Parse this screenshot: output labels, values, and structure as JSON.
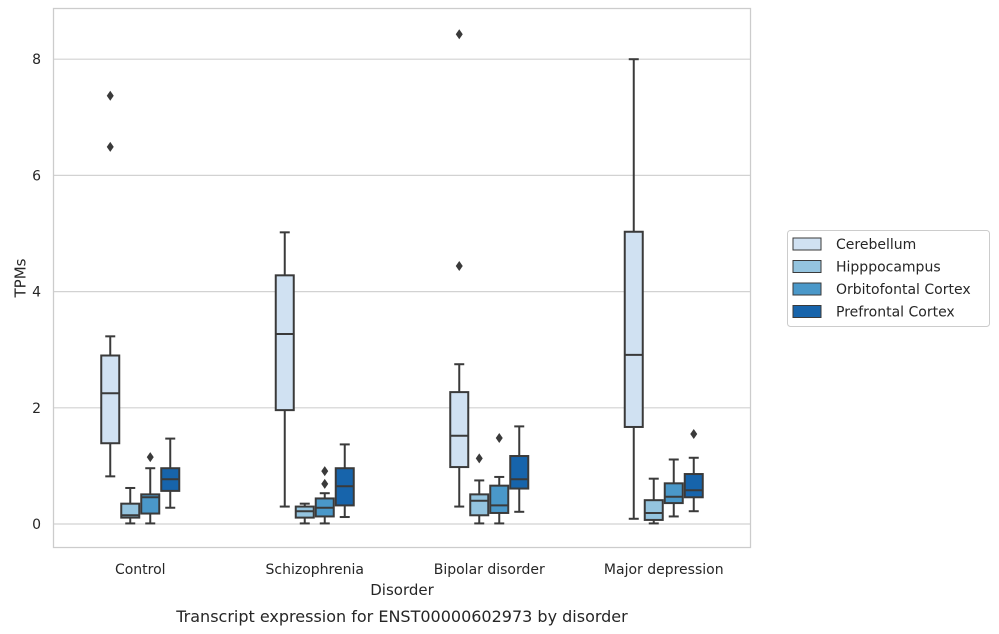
{
  "chart_data": {
    "type": "box",
    "xlabel": "Disorder",
    "ylabel": "TPMs",
    "caption": "Transcript expression for ENST00000602973 by disorder",
    "ylim": [
      -0.4,
      8.9
    ],
    "yticks": [
      0,
      2,
      4,
      6,
      8
    ],
    "grid": "horizontal",
    "legend_position": "right",
    "categories": [
      "Control",
      "Schizophrenia",
      "Bipolar disorder",
      "Major depression"
    ],
    "series": [
      {
        "name": "Cerebellum",
        "color": "#d0e1f2",
        "boxes": [
          {
            "whisker_low": 0.82,
            "q1": 1.39,
            "median": 2.25,
            "q3": 2.9,
            "whisker_high": 3.23,
            "outliers": [
              6.49,
              7.37
            ]
          },
          {
            "whisker_low": 0.3,
            "q1": 1.96,
            "median": 3.27,
            "q3": 4.28,
            "whisker_high": 5.02,
            "outliers": []
          },
          {
            "whisker_low": 0.3,
            "q1": 0.98,
            "median": 1.52,
            "q3": 2.27,
            "whisker_high": 2.75,
            "outliers": [
              4.44,
              8.43
            ]
          },
          {
            "whisker_low": 0.09,
            "q1": 1.67,
            "median": 2.91,
            "q3": 5.03,
            "whisker_high": 8.0,
            "outliers": []
          }
        ]
      },
      {
        "name": "Hipppocampus",
        "color": "#94c4df",
        "boxes": [
          {
            "whisker_low": 0.01,
            "q1": 0.11,
            "median": 0.15,
            "q3": 0.35,
            "whisker_high": 0.62,
            "outliers": []
          },
          {
            "whisker_low": 0.01,
            "q1": 0.11,
            "median": 0.22,
            "q3": 0.3,
            "whisker_high": 0.35,
            "outliers": []
          },
          {
            "whisker_low": 0.01,
            "q1": 0.15,
            "median": 0.4,
            "q3": 0.51,
            "whisker_high": 0.75,
            "outliers": [
              1.13
            ]
          },
          {
            "whisker_low": 0.01,
            "q1": 0.07,
            "median": 0.19,
            "q3": 0.41,
            "whisker_high": 0.78,
            "outliers": []
          }
        ]
      },
      {
        "name": "Orbitofontal Cortex",
        "color": "#4a98c9",
        "boxes": [
          {
            "whisker_low": 0.01,
            "q1": 0.18,
            "median": 0.46,
            "q3": 0.51,
            "whisker_high": 0.96,
            "outliers": [
              1.15
            ]
          },
          {
            "whisker_low": 0.01,
            "q1": 0.13,
            "median": 0.28,
            "q3": 0.44,
            "whisker_high": 0.53,
            "outliers": [
              0.69,
              0.91
            ]
          },
          {
            "whisker_low": 0.01,
            "q1": 0.19,
            "median": 0.32,
            "q3": 0.66,
            "whisker_high": 0.81,
            "outliers": [
              1.48
            ]
          },
          {
            "whisker_low": 0.13,
            "q1": 0.36,
            "median": 0.47,
            "q3": 0.7,
            "whisker_high": 1.11,
            "outliers": []
          }
        ]
      },
      {
        "name": "Prefrontal Cortex",
        "color": "#1764ab",
        "boxes": [
          {
            "whisker_low": 0.28,
            "q1": 0.57,
            "median": 0.77,
            "q3": 0.96,
            "whisker_high": 1.47,
            "outliers": []
          },
          {
            "whisker_low": 0.12,
            "q1": 0.32,
            "median": 0.65,
            "q3": 0.96,
            "whisker_high": 1.37,
            "outliers": []
          },
          {
            "whisker_low": 0.21,
            "q1": 0.61,
            "median": 0.77,
            "q3": 1.17,
            "whisker_high": 1.68,
            "outliers": []
          },
          {
            "whisker_low": 0.22,
            "q1": 0.46,
            "median": 0.58,
            "q3": 0.86,
            "whisker_high": 1.14,
            "outliers": [
              1.55
            ]
          }
        ]
      }
    ]
  }
}
